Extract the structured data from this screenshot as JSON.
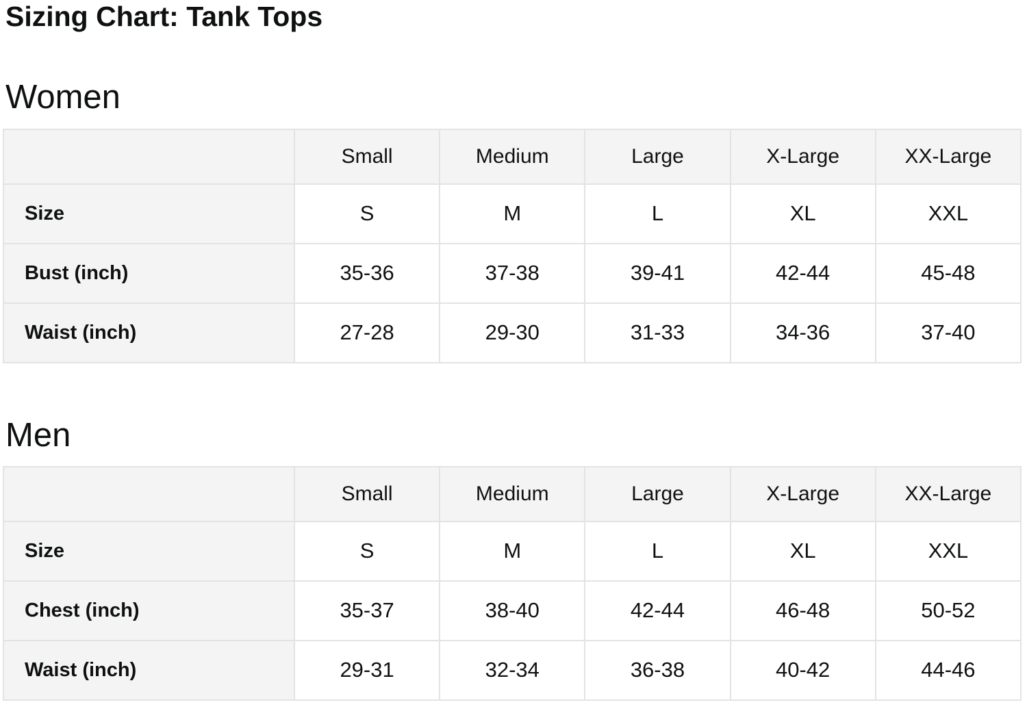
{
  "page": {
    "title": "Sizing Chart: Tank Tops"
  },
  "colors": {
    "text": "#0f1111",
    "header_cell_bg": "#f4f4f4",
    "label_cell_bg": "#f4f4f4",
    "data_cell_bg": "#ffffff",
    "border": "#e3e3e3",
    "page_bg": "#ffffff"
  },
  "tables": [
    {
      "section": "Women",
      "columns": [
        "Small",
        "Medium",
        "Large",
        "X-Large",
        "XX-Large"
      ],
      "rows": [
        {
          "label": "Size",
          "values": [
            "S",
            "M",
            "L",
            "XL",
            "XXL"
          ]
        },
        {
          "label": "Bust (inch)",
          "values": [
            "35-36",
            "37-38",
            "39-41",
            "42-44",
            "45-48"
          ]
        },
        {
          "label": "Waist (inch)",
          "values": [
            "27-28",
            "29-30",
            "31-33",
            "34-36",
            "37-40"
          ]
        }
      ]
    },
    {
      "section": "Men",
      "columns": [
        "Small",
        "Medium",
        "Large",
        "X-Large",
        "XX-Large"
      ],
      "rows": [
        {
          "label": "Size",
          "values": [
            "S",
            "M",
            "L",
            "XL",
            "XXL"
          ]
        },
        {
          "label": "Chest (inch)",
          "values": [
            "35-37",
            "38-40",
            "42-44",
            "46-48",
            "50-52"
          ]
        },
        {
          "label": "Waist (inch)",
          "values": [
            "29-31",
            "32-34",
            "36-38",
            "40-42",
            "44-46"
          ]
        }
      ]
    }
  ]
}
